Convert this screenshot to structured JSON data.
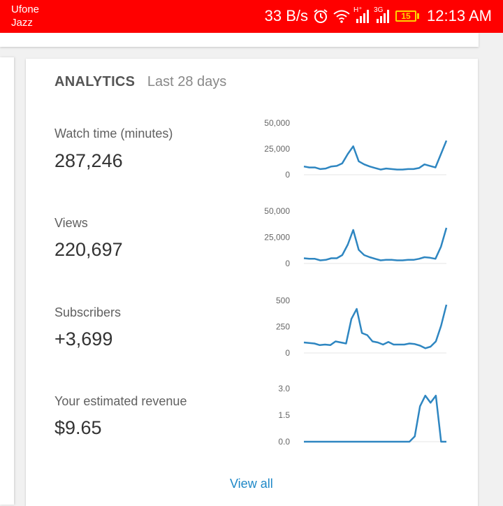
{
  "status_bar": {
    "carrier_1": "Ufone",
    "carrier_2": "Jazz",
    "net_speed": "33 B/s",
    "network_1": "H⁺",
    "network_2": "3G",
    "battery": "15",
    "time": "12:13 AM",
    "icons": [
      "alarm-clock-icon",
      "wifi-icon",
      "signal-icon",
      "signal-icon",
      "battery-icon"
    ],
    "background_color": "#ff0000",
    "battery_color": "#ffd400"
  },
  "analytics": {
    "title": "ANALYTICS",
    "period": "Last 28 days",
    "view_all": "View all",
    "line_color": "#2e86c1",
    "metrics": [
      {
        "label": "Watch time (minutes)",
        "value": "287,246",
        "chart_data": {
          "type": "line",
          "ticks": [
            "50,000",
            "25,000",
            "0"
          ],
          "ylim": [
            0,
            50000
          ],
          "values": [
            8000,
            7000,
            7000,
            5500,
            6000,
            8000,
            8500,
            11000,
            20000,
            27500,
            13000,
            10000,
            8000,
            6500,
            5000,
            6000,
            5500,
            5000,
            5000,
            5500,
            5500,
            6500,
            10000,
            8500,
            7000,
            20000,
            33000
          ]
        }
      },
      {
        "label": "Views",
        "value": "220,697",
        "chart_data": {
          "type": "line",
          "ticks": [
            "50,000",
            "25,000",
            "0"
          ],
          "ylim": [
            0,
            50000
          ],
          "values": [
            5000,
            4500,
            4500,
            3000,
            3500,
            5000,
            5000,
            8000,
            18000,
            32000,
            13000,
            8000,
            6000,
            4500,
            3000,
            3500,
            3500,
            3000,
            3000,
            3500,
            3500,
            4500,
            6000,
            5500,
            4500,
            16000,
            34000
          ]
        }
      },
      {
        "label": "Subscribers",
        "value": "+3,699",
        "chart_data": {
          "type": "line",
          "ticks": [
            "500",
            "250",
            "0"
          ],
          "ylim": [
            0,
            500
          ],
          "values": [
            100,
            95,
            90,
            75,
            80,
            75,
            110,
            100,
            90,
            325,
            420,
            190,
            170,
            110,
            100,
            80,
            105,
            80,
            80,
            80,
            90,
            85,
            70,
            45,
            60,
            110,
            260,
            460
          ]
        }
      },
      {
        "label": "Your estimated revenue",
        "value": "$9.65",
        "chart_data": {
          "type": "line",
          "ticks": [
            "3.0",
            "1.5",
            "0.0"
          ],
          "ylim": [
            0,
            3
          ],
          "values": [
            0,
            0,
            0,
            0,
            0,
            0,
            0,
            0,
            0,
            0,
            0,
            0,
            0,
            0,
            0,
            0,
            0,
            0,
            0,
            0,
            0,
            0.3,
            2.0,
            2.6,
            2.2,
            2.6,
            0,
            0
          ]
        }
      }
    ]
  }
}
